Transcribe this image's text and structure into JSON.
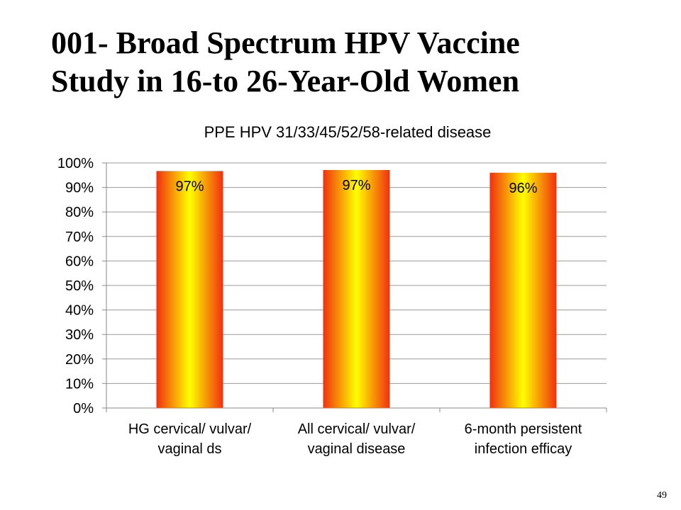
{
  "slide": {
    "title_line1": "001- Broad Spectrum HPV Vaccine",
    "title_line2": "Study in 16-to 26-Year-Old Women",
    "page_number": "49"
  },
  "chart_data": {
    "type": "bar",
    "title": "PPE HPV 31/33/45/52/58-related disease",
    "categories": [
      [
        "HG cervical/ vulvar/",
        "vaginal ds"
      ],
      [
        "All cervical/ vulvar/",
        "vaginal disease"
      ],
      [
        "6-month persistent",
        "infection efficay"
      ]
    ],
    "values": [
      96.7,
      97.1,
      96.0
    ],
    "data_labels": [
      "97%",
      "97%",
      "96%"
    ],
    "yticks": [
      "0%",
      "10%",
      "20%",
      "30%",
      "40%",
      "50%",
      "60%",
      "70%",
      "80%",
      "90%",
      "100%"
    ],
    "ylim": [
      0,
      100
    ],
    "grid": true,
    "legend": "none",
    "bar_gradient": [
      "#f03010",
      "#ffff00",
      "#f03010"
    ]
  }
}
